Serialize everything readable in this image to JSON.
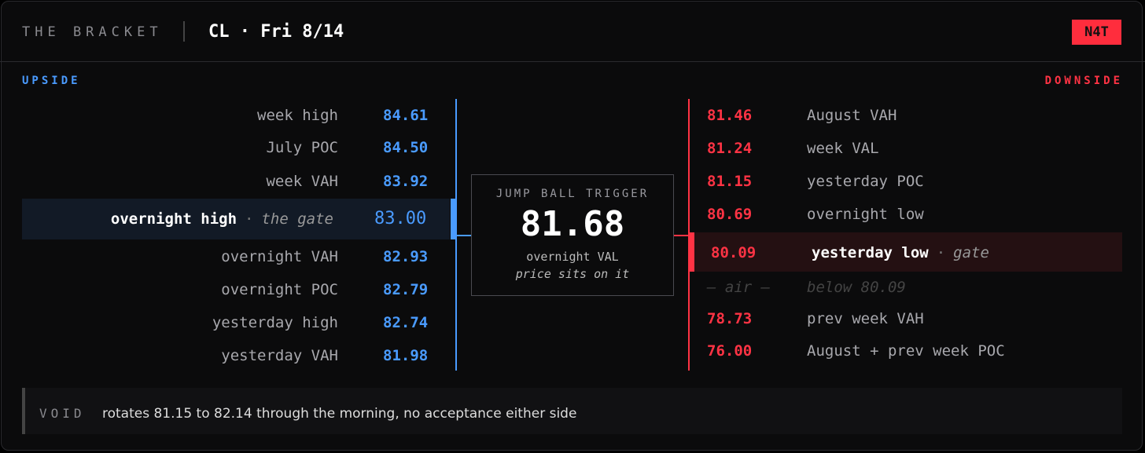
{
  "header": {
    "brand": "THE BRACKET",
    "title": "CL · Fri 8/14",
    "badge": "N4T"
  },
  "upside": {
    "label": "UPSIDE",
    "levels": [
      {
        "name": "week high",
        "price": "84.61"
      },
      {
        "name": "July POC",
        "price": "84.50"
      },
      {
        "name": "week VAH",
        "price": "83.92"
      },
      {
        "name": "overnight high",
        "sep": "·",
        "note": "the gate",
        "price": "83.00"
      },
      {
        "name": "overnight VAH",
        "price": "82.93"
      },
      {
        "name": "overnight POC",
        "price": "82.79"
      },
      {
        "name": "yesterday high",
        "price": "82.74"
      },
      {
        "name": "yesterday VAH",
        "price": "81.98"
      }
    ]
  },
  "center": {
    "label": "JUMP BALL TRIGGER",
    "price": "81.68",
    "line1": "overnight VAL",
    "line2": "price sits on it"
  },
  "downside": {
    "label": "DOWNSIDE",
    "levels": [
      {
        "price": "81.46",
        "name": "August VAH"
      },
      {
        "price": "81.24",
        "name": "week VAL"
      },
      {
        "price": "81.15",
        "name": "yesterday POC"
      },
      {
        "price": "80.69",
        "name": "overnight low"
      },
      {
        "price": "80.09",
        "name": "yesterday low",
        "sep": "·",
        "note": "gate"
      },
      {
        "price": "— air —",
        "name": "below 80.09",
        "muted": true
      },
      {
        "price": "78.73",
        "name": "prev week VAH"
      },
      {
        "price": "76.00",
        "name": "August + prev week POC"
      }
    ]
  },
  "footer": {
    "label": "VOID",
    "text": "rotates 81.15 to 82.14 through the morning, no acceptance either side"
  }
}
